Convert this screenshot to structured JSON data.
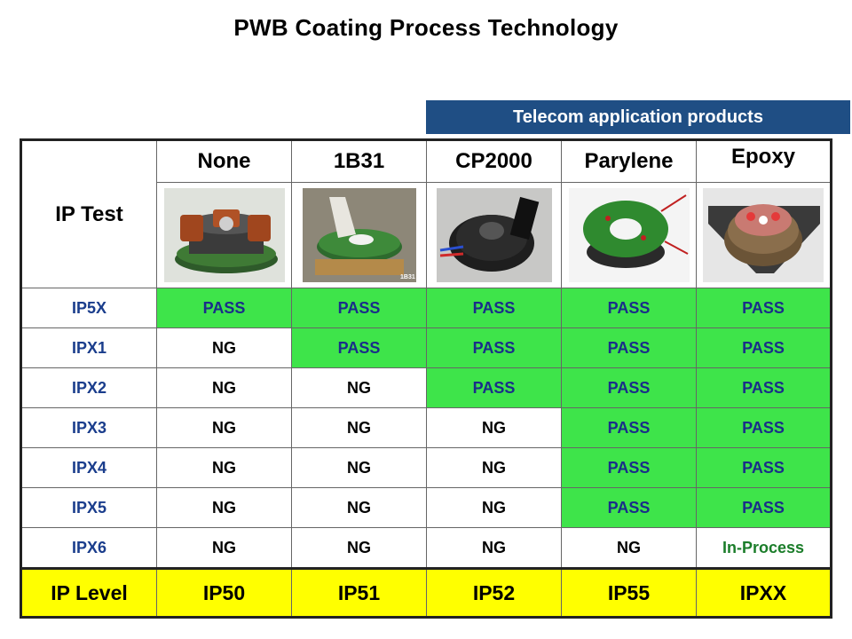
{
  "title": "PWB Coating Process Technology",
  "banner": "Telecom application products",
  "table": {
    "corner_label": "IP Test",
    "columns": [
      "None",
      "1B31",
      "CP2000",
      "Parylene",
      "Epoxy"
    ],
    "photo_stamp": "1B31",
    "rows": [
      {
        "label": "IP5X",
        "cells": [
          {
            "text": "PASS",
            "status": "pass"
          },
          {
            "text": "PASS",
            "status": "pass"
          },
          {
            "text": "PASS",
            "status": "pass"
          },
          {
            "text": "PASS",
            "status": "pass"
          },
          {
            "text": "PASS",
            "status": "pass"
          }
        ]
      },
      {
        "label": "IPX1",
        "cells": [
          {
            "text": "NG",
            "status": "ng"
          },
          {
            "text": "PASS",
            "status": "pass"
          },
          {
            "text": "PASS",
            "status": "pass"
          },
          {
            "text": "PASS",
            "status": "pass"
          },
          {
            "text": "PASS",
            "status": "pass"
          }
        ]
      },
      {
        "label": "IPX2",
        "cells": [
          {
            "text": "NG",
            "status": "ng"
          },
          {
            "text": "NG",
            "status": "ng"
          },
          {
            "text": "PASS",
            "status": "pass"
          },
          {
            "text": "PASS",
            "status": "pass"
          },
          {
            "text": "PASS",
            "status": "pass"
          }
        ]
      },
      {
        "label": "IPX3",
        "cells": [
          {
            "text": "NG",
            "status": "ng"
          },
          {
            "text": "NG",
            "status": "ng"
          },
          {
            "text": "NG",
            "status": "ng"
          },
          {
            "text": "PASS",
            "status": "pass"
          },
          {
            "text": "PASS",
            "status": "pass"
          }
        ]
      },
      {
        "label": "IPX4",
        "cells": [
          {
            "text": "NG",
            "status": "ng"
          },
          {
            "text": "NG",
            "status": "ng"
          },
          {
            "text": "NG",
            "status": "ng"
          },
          {
            "text": "PASS",
            "status": "pass"
          },
          {
            "text": "PASS",
            "status": "pass"
          }
        ]
      },
      {
        "label": "IPX5",
        "cells": [
          {
            "text": "NG",
            "status": "ng"
          },
          {
            "text": "NG",
            "status": "ng"
          },
          {
            "text": "NG",
            "status": "ng"
          },
          {
            "text": "PASS",
            "status": "pass"
          },
          {
            "text": "PASS",
            "status": "pass"
          }
        ]
      },
      {
        "label": "IPX6",
        "cells": [
          {
            "text": "NG",
            "status": "ng"
          },
          {
            "text": "NG",
            "status": "ng"
          },
          {
            "text": "NG",
            "status": "ng"
          },
          {
            "text": "NG",
            "status": "ng"
          },
          {
            "text": "In-Process",
            "status": "inprocess"
          }
        ]
      }
    ],
    "level_row": {
      "label": "IP Level",
      "values": [
        "IP50",
        "IP51",
        "IP52",
        "IP55",
        "IPXX"
      ]
    }
  },
  "colors": {
    "banner_bg": "#1f4e84",
    "pass_bg": "#3ee44a",
    "pass_text": "#1a2d8a",
    "row_label_text": "#1a3d8c",
    "inprocess_text": "#1b7d2a",
    "level_bg": "#ffff00"
  }
}
